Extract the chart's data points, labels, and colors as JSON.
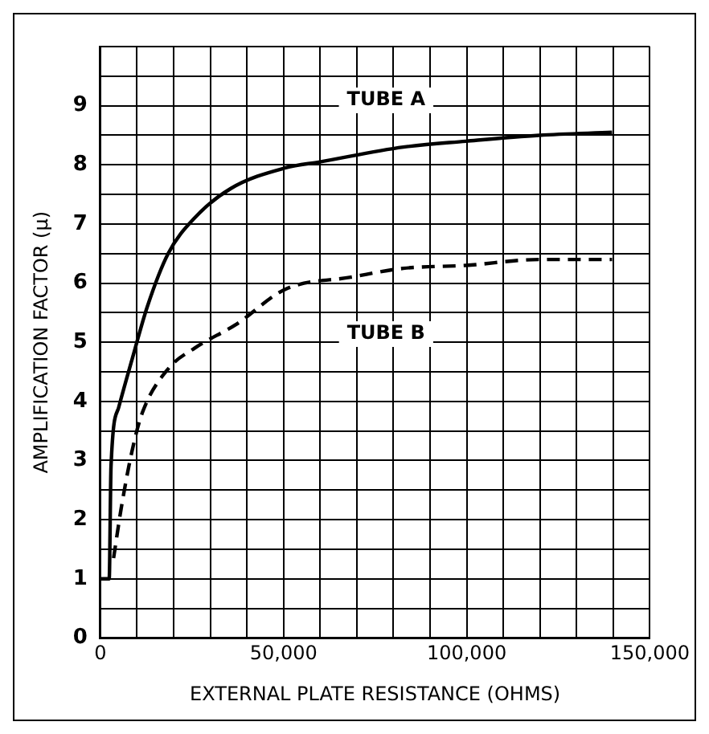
{
  "chart_data": {
    "type": "line",
    "xlabel": "EXTERNAL PLATE RESISTANCE (OHMS)",
    "ylabel": "AMPLIFICATION FACTOR (μ)",
    "xlim": [
      0,
      150000
    ],
    "ylim": [
      0,
      10
    ],
    "xticks": [
      0,
      {
        "value": 10000,
        "label": null
      },
      {
        "value": 20000,
        "label": null
      },
      {
        "value": 30000,
        "label": null
      },
      {
        "value": 40000,
        "label": null
      },
      {
        "value": 50000,
        "label": "50,000"
      },
      {
        "value": 60000,
        "label": null
      },
      {
        "value": 70000,
        "label": null
      },
      {
        "value": 80000,
        "label": null
      },
      {
        "value": 90000,
        "label": null
      },
      {
        "value": 100000,
        "label": "100,000"
      },
      {
        "value": 110000,
        "label": null
      },
      {
        "value": 120000,
        "label": null
      },
      {
        "value": 130000,
        "label": null
      },
      {
        "value": 140000,
        "label": null
      },
      {
        "value": 150000,
        "label": "150,000"
      }
    ],
    "yticks": [
      0,
      {
        "value": 0.5,
        "label": null
      },
      1,
      {
        "value": 1.5,
        "label": null
      },
      2,
      {
        "value": 2.5,
        "label": null
      },
      3,
      {
        "value": 3.5,
        "label": null
      },
      4,
      {
        "value": 4.5,
        "label": null
      },
      5,
      {
        "value": 5.5,
        "label": null
      },
      6,
      {
        "value": 6.5,
        "label": null
      },
      7,
      {
        "value": 7.5,
        "label": null
      },
      8,
      {
        "value": 8.5,
        "label": null
      },
      9,
      {
        "value": 9.5,
        "label": null
      },
      {
        "value": 10,
        "label": null
      }
    ],
    "grid": true,
    "legend": false,
    "marker": "none",
    "series": [
      {
        "name": "TUBE A",
        "color": "#000000",
        "line_style": "solid",
        "x": [
          0,
          2400,
          2900,
          5000,
          8600,
          12800,
          18500,
          25700,
          35600,
          50600,
          59900,
          82700,
          99800,
          119800,
          139700
        ],
        "values": [
          1,
          1,
          2.9,
          3.9,
          4.7,
          5.6,
          6.5,
          7.1,
          7.6,
          7.95,
          8.05,
          8.3,
          8.4,
          8.5,
          8.55
        ]
      },
      {
        "name": "TUBE B",
        "color": "#000000",
        "line_style": "dashed",
        "x": [
          3600,
          5700,
          8600,
          11400,
          18500,
          25700,
          37000,
          50600,
          68400,
          82700,
          99800,
          119800,
          139700
        ],
        "values": [
          1.35,
          2.2,
          3.15,
          3.8,
          4.55,
          4.9,
          5.3,
          5.9,
          6.1,
          6.25,
          6.3,
          6.4,
          6.4
        ]
      }
    ]
  }
}
